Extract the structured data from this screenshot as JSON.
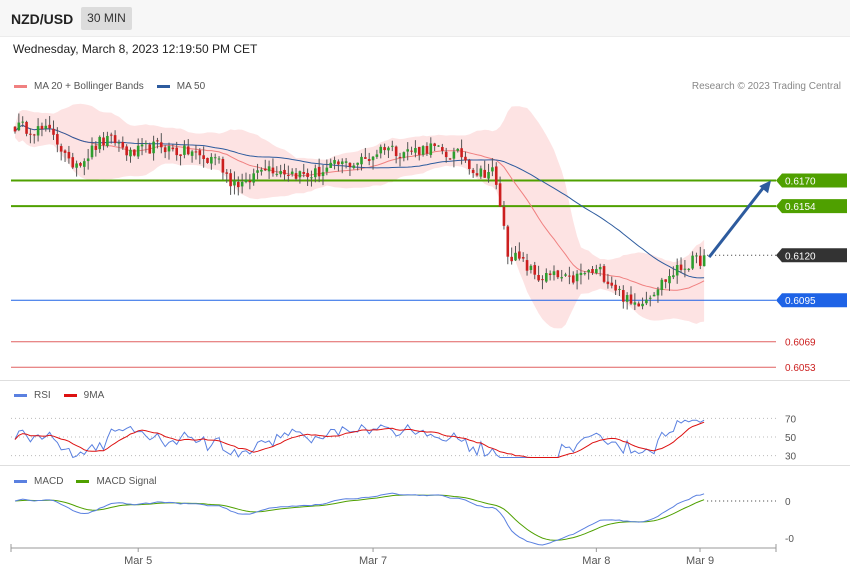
{
  "header": {
    "symbol": "NZD/USD",
    "timeframe": "30 MIN"
  },
  "timestamp": "Wednesday, March 8, 2023 12:19:50 PM CET",
  "legend": {
    "ma20": {
      "label": "MA 20 + Bollinger Bands",
      "color": "#f08080"
    },
    "ma50": {
      "label": "MA 50",
      "color": "#2d5b9e"
    }
  },
  "credit": "Research © 2023 Trading Central",
  "colors": {
    "up": "#2e9e2e",
    "down": "#cc1f1f",
    "band": "#fde3e3",
    "resistance": "#4fa000",
    "pivot": "#1e63e6",
    "support": "#e06060",
    "last": "#333333",
    "arrow": "#2d5b9e"
  },
  "chart_data": [
    {
      "type": "candlestick",
      "title": "NZD/USD",
      "ylim": [
        0.6045,
        0.6228
      ],
      "last_price": "0.6120",
      "levels": [
        {
          "label": "0.6170",
          "value": 0.617,
          "kind": "resistance"
        },
        {
          "label": "0.6154",
          "value": 0.6154,
          "kind": "resistance"
        },
        {
          "label": "0.6095",
          "value": 0.6095,
          "kind": "pivot"
        },
        {
          "label": "0.6069",
          "value": 0.6069,
          "kind": "support"
        },
        {
          "label": "0.6053",
          "value": 0.6053,
          "kind": "support"
        }
      ],
      "x_ticks": [
        "Mar 5",
        "Mar 7",
        "Mar 8",
        "Mar 9"
      ],
      "arrow": {
        "from": 0.6122,
        "to": 0.617
      },
      "close_anchors": [
        [
          0,
          0.6204
        ],
        [
          6,
          0.6202
        ],
        [
          10,
          0.62
        ],
        [
          14,
          0.618
        ],
        [
          18,
          0.6184
        ],
        [
          22,
          0.6194
        ],
        [
          26,
          0.6195
        ],
        [
          30,
          0.6186
        ],
        [
          34,
          0.619
        ],
        [
          38,
          0.6192
        ],
        [
          42,
          0.6188
        ],
        [
          46,
          0.6188
        ],
        [
          50,
          0.6182
        ],
        [
          52,
          0.6186
        ],
        [
          56,
          0.617
        ],
        [
          60,
          0.6167
        ],
        [
          64,
          0.618
        ],
        [
          68,
          0.6177
        ],
        [
          72,
          0.6175
        ],
        [
          76,
          0.6173
        ],
        [
          80,
          0.6176
        ],
        [
          84,
          0.618
        ],
        [
          88,
          0.6181
        ],
        [
          92,
          0.6184
        ],
        [
          96,
          0.6192
        ],
        [
          100,
          0.6188
        ],
        [
          104,
          0.6189
        ],
        [
          108,
          0.6191
        ],
        [
          112,
          0.6186
        ],
        [
          116,
          0.6186
        ],
        [
          120,
          0.6175
        ],
        [
          124,
          0.6176
        ],
        [
          126,
          0.6155
        ],
        [
          128,
          0.6125
        ],
        [
          132,
          0.6118
        ],
        [
          136,
          0.6109
        ],
        [
          140,
          0.611
        ],
        [
          144,
          0.6107
        ],
        [
          148,
          0.6112
        ],
        [
          152,
          0.6113
        ],
        [
          156,
          0.6103
        ],
        [
          160,
          0.6092
        ],
        [
          164,
          0.6097
        ],
        [
          168,
          0.6106
        ],
        [
          172,
          0.6114
        ],
        [
          176,
          0.6119
        ],
        [
          179,
          0.6121
        ]
      ]
    },
    {
      "type": "line",
      "title": "RSI",
      "series": [
        {
          "name": "RSI",
          "color": "#5a80e0"
        },
        {
          "name": "9MA",
          "color": "#dd1111"
        }
      ],
      "y_ticks": [
        "70",
        "50",
        "30"
      ],
      "ylim": [
        20,
        80
      ]
    },
    {
      "type": "line",
      "title": "MACD",
      "series": [
        {
          "name": "MACD",
          "color": "#5a80e0"
        },
        {
          "name": "MACD Signal",
          "color": "#4fa000"
        }
      ],
      "y_ticks": [
        "0",
        "-0"
      ]
    }
  ]
}
